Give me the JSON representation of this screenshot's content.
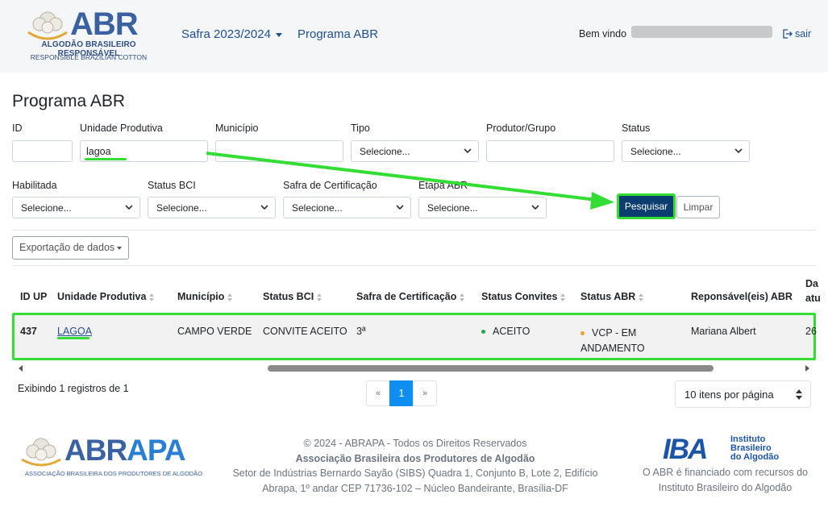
{
  "header": {
    "logo": {
      "word": "ABR",
      "line1": "ALGODÃO BRASILEIRO RESPONSÁVEL",
      "line2": "RESPONSIBLE BRAZILIAN COTTON"
    },
    "nav_safra": "Safra 2023/2024",
    "nav_programa": "Programa ABR",
    "welcome": "Bem vindo",
    "logout": "sair"
  },
  "page": {
    "title": "Programa ABR"
  },
  "filters": {
    "id": {
      "label": "ID",
      "value": ""
    },
    "unidade": {
      "label": "Unidade Produtiva",
      "value": "lagoa"
    },
    "municipio": {
      "label": "Município",
      "value": ""
    },
    "tipo": {
      "label": "Tipo",
      "value": "Selecione..."
    },
    "produtor": {
      "label": "Produtor/Grupo",
      "value": ""
    },
    "status": {
      "label": "Status",
      "value": "Selecione..."
    },
    "habilitada": {
      "label": "Habilitada",
      "value": "Selecione..."
    },
    "status_bci": {
      "label": "Status BCI",
      "value": "Selecione..."
    },
    "safra_cert": {
      "label": "Safra de Certificação",
      "value": "Selecione..."
    },
    "etapa_abr": {
      "label": "Etapa ABR",
      "value": "Selecione..."
    },
    "search_button": "Pesquisar",
    "clear_button": "Limpar"
  },
  "export_button": "Exportação de dados",
  "table": {
    "headers": {
      "id": "ID UP",
      "unidade": "Unidade Produtiva",
      "municipio": "Município",
      "status_bci": "Status BCI",
      "safra": "Safra de Certificação",
      "convites": "Status Convites",
      "status_abr": "Status ABR",
      "responsavel": "Reponsável(eis) ABR",
      "data_top": "Da",
      "data_bottom": "atu"
    },
    "row": {
      "id": "437",
      "unidade": "LAGOA",
      "municipio": "CAMPO VERDE",
      "status_bci": "CONVITE ACEITO",
      "safra": "3ª",
      "convites": "ACEITO",
      "status_abr_1": "VCP - EM",
      "status_abr_2": "ANDAMENTO",
      "responsavel": "Mariana Albert",
      "data": "26"
    },
    "status_colors": {
      "aceito": "#28a745",
      "em_andamento": "#f0a030"
    }
  },
  "pagination": {
    "showing": "Exibindo 1 registros de 1",
    "prev": "«",
    "current": "1",
    "next": "»",
    "per_page": "10 itens por página"
  },
  "footer": {
    "abrapa_word_a": "ABR",
    "abrapa_word_b": "APA",
    "abrapa_sub": "ASSOCIAÇÃO BRASILEIRA DOS PRODUTORES DE ALGODÃO",
    "copyright": "© 2024 - ABRAPA - Todos os Direitos Reservados",
    "org": "Associação Brasileira dos Produtores de Algodão",
    "address1": "Setor de Indústrias Bernardo Sayão (SIBS) Quadra 1, Conjunto B, Lote 2, Edifício",
    "address2": "Abrapa, 1º andar CEP 71736-102 – Núcleo Bandeirante, Brasília-DF",
    "iba_big": "IBA",
    "iba_small1": "Instituto",
    "iba_small2": "Brasileiro",
    "iba_small3": "do Algodão",
    "iba_caption1": "O ABR é financiado com recursos do",
    "iba_caption2": "Instituto Brasileiro do Algodão"
  },
  "colors": {
    "brand_blue": "#1f4f93",
    "highlight_green": "#33dd33",
    "primary_button": "#0b3d73",
    "pager_active": "#0d8ef0"
  }
}
